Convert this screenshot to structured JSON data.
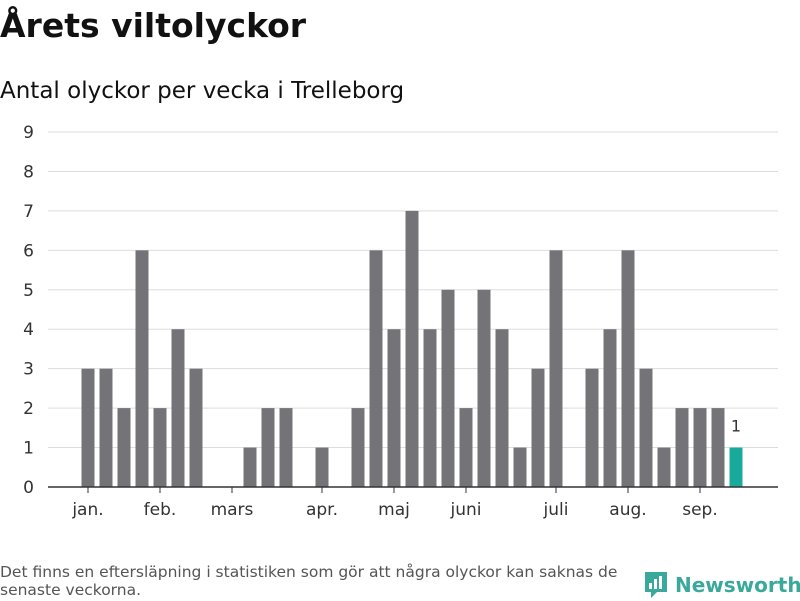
{
  "header": {
    "title": "Årets viltolyckor",
    "subtitle": "Antal olyckor per vecka i Trelleborg"
  },
  "footer": {
    "note": "Det finns en eftersläpning i statistiken som gör att några olyckor kan saknas de senaste veckorna.",
    "brand": "Newsworthy"
  },
  "colors": {
    "bar": "#747378",
    "highlight": "#1aa99d",
    "grid": "#dddddd",
    "axis": "#333333",
    "brand": "#3aa99c"
  },
  "chart_data": {
    "type": "bar",
    "title": "Årets viltolyckor",
    "subtitle": "Antal olyckor per vecka i Trelleborg",
    "xlabel": "",
    "ylabel": "",
    "ylim": [
      0,
      9
    ],
    "y_ticks": [
      0,
      1,
      2,
      3,
      4,
      5,
      6,
      7,
      8,
      9
    ],
    "x_tick_labels": [
      {
        "label": "jan.",
        "week": 1
      },
      {
        "label": "feb.",
        "week": 5
      },
      {
        "label": "mars",
        "week": 9
      },
      {
        "label": "apr.",
        "week": 14
      },
      {
        "label": "maj",
        "week": 18
      },
      {
        "label": "juni",
        "week": 22
      },
      {
        "label": "juli",
        "week": 27
      },
      {
        "label": "aug.",
        "week": 31
      },
      {
        "label": "sep.",
        "week": 35
      }
    ],
    "weeks": [
      1,
      2,
      3,
      4,
      5,
      6,
      7,
      8,
      9,
      10,
      11,
      12,
      13,
      14,
      15,
      16,
      17,
      18,
      19,
      20,
      21,
      22,
      23,
      24,
      25,
      26,
      27,
      28,
      29,
      30,
      31,
      32,
      33,
      34,
      35,
      36,
      37
    ],
    "values": [
      3,
      3,
      2,
      6,
      2,
      4,
      3,
      0,
      0,
      1,
      2,
      2,
      0,
      1,
      0,
      2,
      6,
      4,
      7,
      4,
      5,
      2,
      5,
      4,
      1,
      3,
      6,
      0,
      3,
      4,
      6,
      3,
      1,
      2,
      2,
      2,
      1
    ],
    "highlight_index": 36,
    "highlight_label": "1",
    "grid": true,
    "legend": "none"
  }
}
